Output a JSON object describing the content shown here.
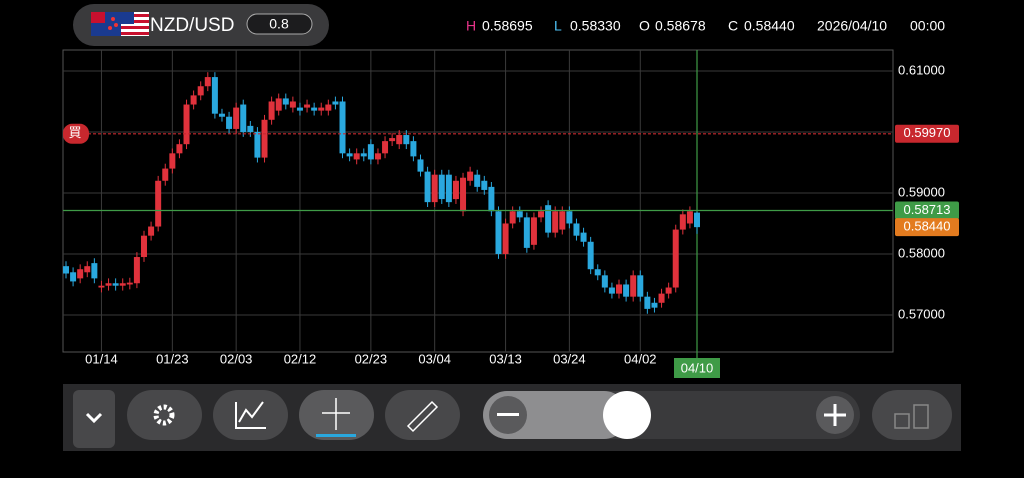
{
  "header": {
    "symbol": "NZD/USD",
    "lot": "0.8",
    "ohlc": [
      {
        "key": "H",
        "value": "0.58695"
      },
      {
        "key": "L",
        "value": "0.58330"
      },
      {
        "key": "O",
        "value": "0.58678"
      },
      {
        "key": "C",
        "value": "0.58440"
      }
    ],
    "date": "2026/04/10",
    "time": "00:00"
  },
  "chart_data": {
    "type": "candlestick",
    "categories": [
      null,
      null,
      null,
      null,
      null,
      "01/14",
      null,
      null,
      null,
      null,
      null,
      null,
      null,
      null,
      null,
      "01/23",
      null,
      null,
      null,
      null,
      null,
      null,
      null,
      null,
      "02/03",
      null,
      null,
      null,
      null,
      null,
      null,
      null,
      null,
      "02/12",
      null,
      null,
      null,
      null,
      null,
      null,
      null,
      null,
      null,
      "02/23",
      null,
      null,
      null,
      null,
      null,
      null,
      null,
      null,
      "03/04",
      null,
      null,
      null,
      null,
      null,
      null,
      null,
      null,
      null,
      "03/13",
      null,
      null,
      null,
      null,
      null,
      null,
      null,
      null,
      "03/24",
      null,
      null,
      null,
      null,
      null,
      null,
      null,
      null,
      null,
      "04/02",
      null,
      null,
      null,
      null,
      null,
      null,
      null,
      "04/10"
    ],
    "open": [
      0.578,
      0.577,
      0.576,
      0.577,
      0.5785,
      0.5745,
      0.5748,
      0.5752,
      0.5748,
      0.575,
      0.5752,
      0.5795,
      0.583,
      0.5845,
      0.592,
      0.594,
      0.5965,
      0.598,
      0.6045,
      0.606,
      0.6075,
      0.609,
      0.603,
      0.6025,
      0.6005,
      0.6045,
      0.601,
      0.6,
      0.5958,
      0.602,
      0.6035,
      0.6055,
      0.604,
      0.604,
      0.604,
      0.604,
      0.6035,
      0.6035,
      0.605,
      0.605,
      0.5965,
      0.5955,
      0.5965,
      0.598,
      0.5955,
      0.5965,
      0.5985,
      0.598,
      0.5995,
      0.5985,
      0.5955,
      0.5935,
      0.5885,
      0.593,
      0.593,
      0.589,
      0.587,
      0.592,
      0.593,
      0.592,
      0.591,
      0.587,
      0.58,
      0.585,
      0.587,
      0.586,
      0.5815,
      0.586,
      0.588,
      0.5835,
      0.584,
      0.587,
      0.585,
      0.5835,
      0.582,
      0.5775,
      0.5765,
      0.5745,
      0.5735,
      0.575,
      0.573,
      0.5765,
      0.573,
      0.572,
      0.572,
      0.5735,
      0.5745,
      0.584,
      0.585,
      0.58678
    ],
    "high": [
      0.5788,
      0.5778,
      0.5783,
      0.5788,
      0.5793,
      0.5756,
      0.576,
      0.576,
      0.576,
      0.5761,
      0.5803,
      0.5838,
      0.5853,
      0.5928,
      0.5948,
      0.5973,
      0.5988,
      0.6053,
      0.6068,
      0.6083,
      0.6098,
      0.6098,
      0.6038,
      0.6033,
      0.6048,
      0.6053,
      0.6018,
      0.6008,
      0.6028,
      0.6058,
      0.6063,
      0.6063,
      0.6058,
      0.6048,
      0.6053,
      0.6048,
      0.6048,
      0.6053,
      0.6058,
      0.6058,
      0.5973,
      0.5973,
      0.5973,
      0.5988,
      0.5973,
      0.5993,
      0.5998,
      0.6003,
      0.6003,
      0.5993,
      0.5963,
      0.5943,
      0.5938,
      0.5938,
      0.5938,
      0.5928,
      0.5933,
      0.5943,
      0.5938,
      0.5928,
      0.5918,
      0.5878,
      0.5858,
      0.5878,
      0.5878,
      0.5868,
      0.5868,
      0.5878,
      0.5888,
      0.5878,
      0.5878,
      0.5878,
      0.5858,
      0.5843,
      0.5828,
      0.5783,
      0.5773,
      0.5753,
      0.5758,
      0.5758,
      0.5773,
      0.5773,
      0.5738,
      0.5728,
      0.5743,
      0.5753,
      0.5848,
      0.5873,
      0.5878,
      0.58695
    ],
    "low": [
      0.576,
      0.5747,
      0.5752,
      0.5762,
      0.5752,
      0.5737,
      0.574,
      0.574,
      0.574,
      0.5742,
      0.5744,
      0.5787,
      0.5822,
      0.5837,
      0.5912,
      0.5932,
      0.5957,
      0.5972,
      0.6037,
      0.6052,
      0.6067,
      0.6022,
      0.6017,
      0.5997,
      0.5997,
      0.5992,
      0.5992,
      0.595,
      0.595,
      0.6012,
      0.6027,
      0.6037,
      0.6032,
      0.6027,
      0.6032,
      0.6027,
      0.6027,
      0.6027,
      0.6037,
      0.5957,
      0.5952,
      0.5947,
      0.5952,
      0.5947,
      0.5947,
      0.5957,
      0.5977,
      0.5972,
      0.5972,
      0.5952,
      0.5927,
      0.5877,
      0.5877,
      0.5882,
      0.5877,
      0.5882,
      0.5862,
      0.5912,
      0.5902,
      0.5897,
      0.5862,
      0.5792,
      0.5792,
      0.5842,
      0.5852,
      0.5802,
      0.5807,
      0.5852,
      0.5827,
      0.5827,
      0.5832,
      0.5842,
      0.5822,
      0.5812,
      0.5767,
      0.5757,
      0.5737,
      0.5727,
      0.5727,
      0.5722,
      0.5722,
      0.5722,
      0.5702,
      0.5704,
      0.5712,
      0.5727,
      0.5737,
      0.5832,
      0.5842,
      0.5833
    ],
    "close": [
      0.5768,
      0.5755,
      0.5775,
      0.578,
      0.576,
      0.5748,
      0.5752,
      0.5748,
      0.5752,
      0.5753,
      0.5795,
      0.583,
      0.5845,
      0.592,
      0.594,
      0.5965,
      0.598,
      0.6045,
      0.606,
      0.6075,
      0.609,
      0.603,
      0.6025,
      0.6005,
      0.604,
      0.6,
      0.6,
      0.5958,
      0.602,
      0.605,
      0.6055,
      0.6045,
      0.605,
      0.6035,
      0.6045,
      0.6035,
      0.604,
      0.6045,
      0.6045,
      0.5965,
      0.596,
      0.5965,
      0.596,
      0.5955,
      0.5965,
      0.5985,
      0.599,
      0.5995,
      0.598,
      0.596,
      0.5935,
      0.5885,
      0.593,
      0.589,
      0.5885,
      0.592,
      0.5925,
      0.5935,
      0.591,
      0.5905,
      0.587,
      0.58,
      0.585,
      0.587,
      0.586,
      0.581,
      0.586,
      0.587,
      0.5835,
      0.587,
      0.587,
      0.585,
      0.583,
      0.582,
      0.5775,
      0.5765,
      0.5745,
      0.5735,
      0.575,
      0.573,
      0.5765,
      0.573,
      0.571,
      0.5712,
      0.5735,
      0.5745,
      0.584,
      0.5865,
      0.587,
      0.5844
    ],
    "up_color": "#e0323c",
    "down_color": "#2aa8de",
    "ylim": [
      0.56393,
      0.61344
    ],
    "yticks": [
      {
        "value": 0.57,
        "label": "0.57000"
      },
      {
        "value": 0.58,
        "label": "0.58000"
      },
      {
        "value": 0.59,
        "label": "0.59000"
      },
      {
        "value": 0.6,
        "label": "0.60000"
      },
      {
        "value": 0.61,
        "label": "0.61000"
      }
    ],
    "grid": true,
    "price_lines": [
      {
        "value": 0.5997,
        "label": "0.59970",
        "tag": "買",
        "color": "#c8282e",
        "style": "dashed"
      },
      {
        "value": 0.58713,
        "label": "0.58713",
        "color": "#3f9b47",
        "style": "solid"
      },
      {
        "value": 0.5844,
        "label": "0.58440",
        "color": "#e37b1f",
        "style": "none"
      }
    ]
  }
}
